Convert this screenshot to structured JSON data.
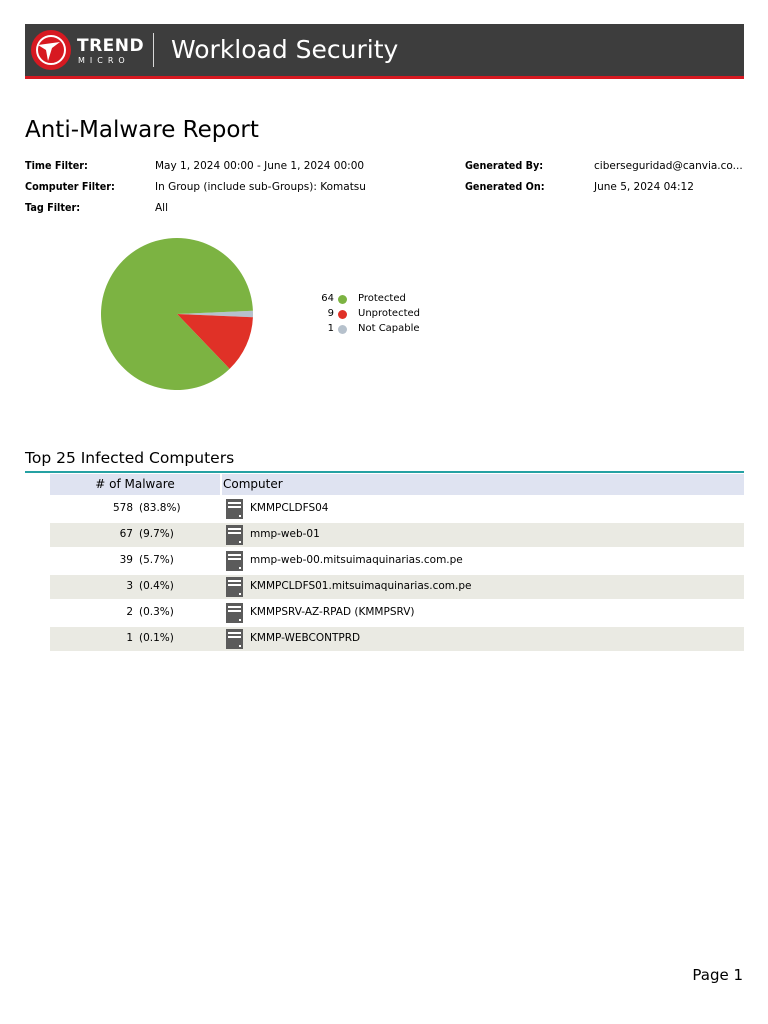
{
  "header": {
    "brand_name": "TREND",
    "brand_sub": "MICRO",
    "product": "Workload Security",
    "brand_color": "#d71921",
    "banner_color": "#3d3d3d"
  },
  "report": {
    "title": "Anti-Malware Report",
    "filters": [
      {
        "label": "Time Filter:",
        "value": "May 1, 2024 00:00 - June 1, 2024 00:00"
      },
      {
        "label": "Computer Filter:",
        "value": "In Group (include sub-Groups): Komatsu"
      },
      {
        "label": "Tag Filter:",
        "value": "All"
      }
    ],
    "generated": [
      {
        "label": "Generated By:",
        "value": "ciberseguridad@canvia.co..."
      },
      {
        "label": "Generated On:",
        "value": "June 5, 2024 04:12"
      }
    ]
  },
  "chart_data": {
    "type": "pie",
    "slices": [
      {
        "label": "Protected",
        "value": 64,
        "color": "#7cb342"
      },
      {
        "label": "Unprotected",
        "value": 9,
        "color": "#e03127"
      },
      {
        "label": "Not Capable",
        "value": 1,
        "color": "#b6c1cc"
      }
    ]
  },
  "infected": {
    "title": "Top 25 Infected Computers",
    "columns": [
      "# of Malware",
      "Computer"
    ],
    "rows": [
      {
        "count": "578",
        "pct": "(83.8%)",
        "computer": "KMMPCLDFS04",
        "icon": "server-icon"
      },
      {
        "count": "67",
        "pct": "(9.7%)",
        "computer": "mmp-web-01",
        "icon": "server-icon"
      },
      {
        "count": "39",
        "pct": "(5.7%)",
        "computer": "mmp-web-00.mitsuimaquinarias.com.pe",
        "icon": "server-icon"
      },
      {
        "count": "3",
        "pct": "(0.4%)",
        "computer": "KMMPCLDFS01.mitsuimaquinarias.com.pe",
        "icon": "server-icon"
      },
      {
        "count": "2",
        "pct": "(0.3%)",
        "computer": "KMMPSRV-AZ-RPAD (KMMPSRV)",
        "icon": "server-icon"
      },
      {
        "count": "1",
        "pct": "(0.1%)",
        "computer": "KMMP-WEBCONTPRD",
        "icon": "server-icon"
      }
    ]
  },
  "footer": {
    "page_label": "Page 1"
  }
}
